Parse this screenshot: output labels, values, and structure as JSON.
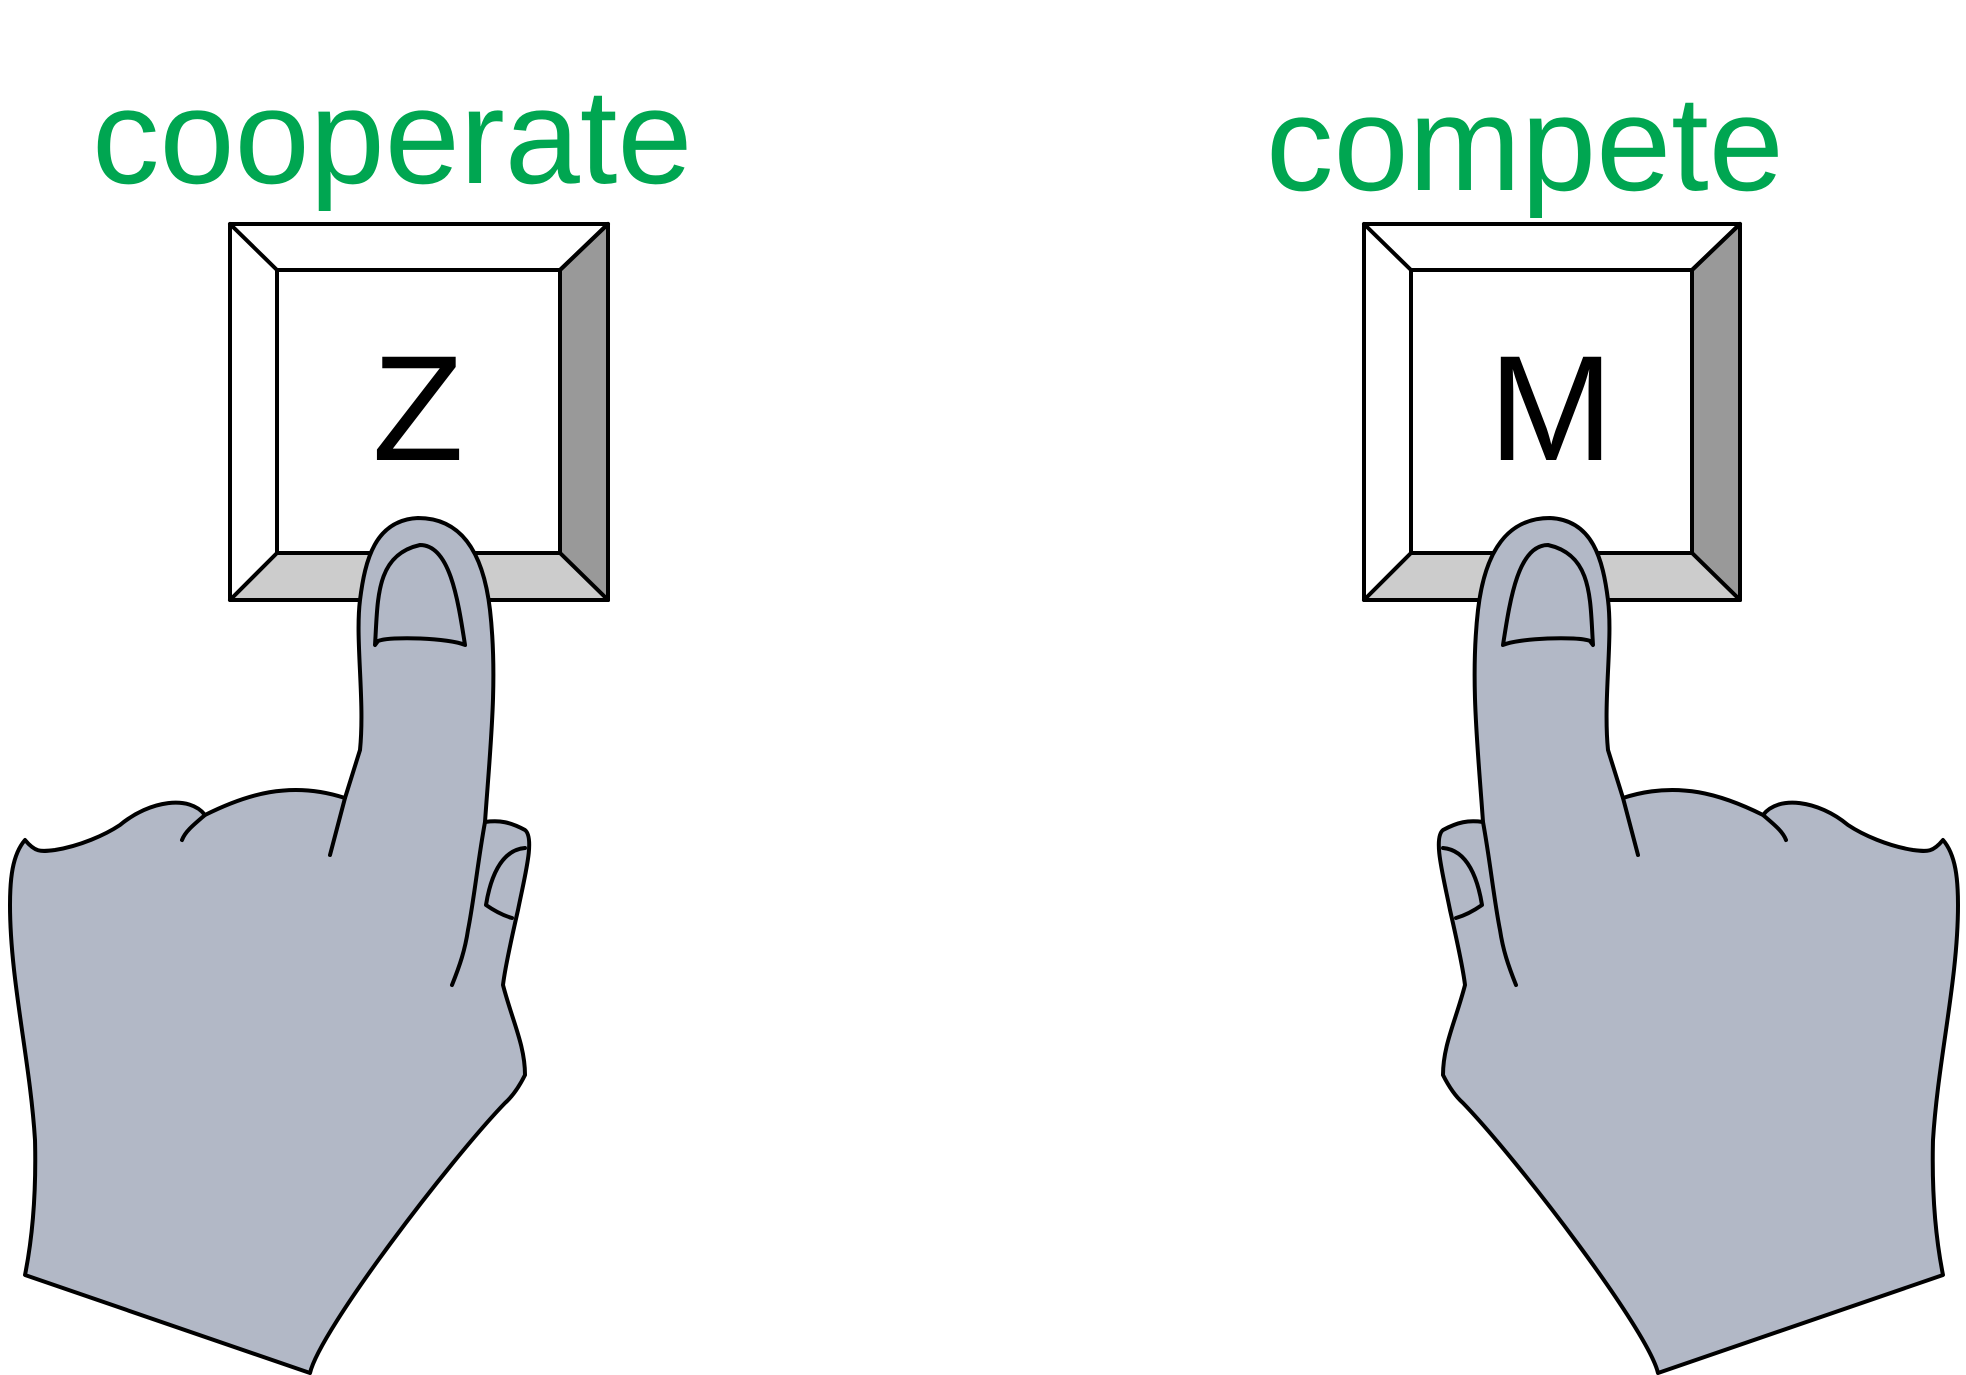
{
  "labels": {
    "left": "cooperate",
    "right": "compete"
  },
  "keys": {
    "left": "Z",
    "right": "M"
  },
  "colors": {
    "label": "#00a651",
    "hand": "#b2b8c6",
    "key_face": "#ffffff",
    "key_side_dark": "#999999",
    "key_side_light": "#cccccc",
    "outline": "#000000"
  }
}
